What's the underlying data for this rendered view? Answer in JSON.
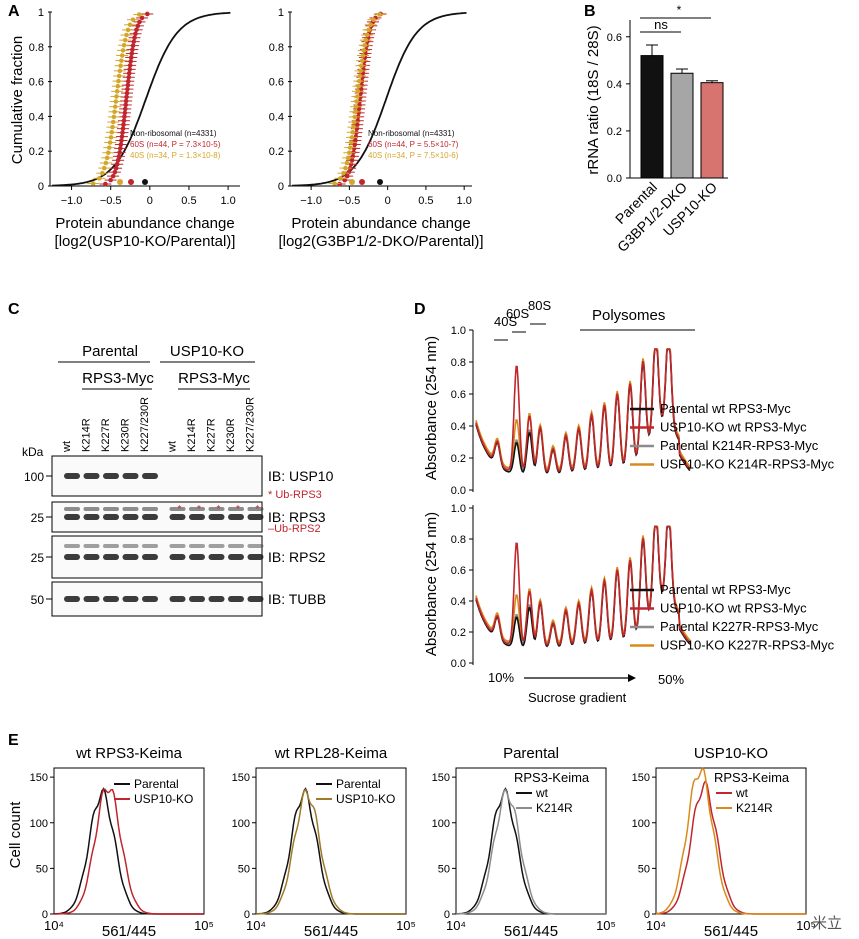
{
  "colors": {
    "black": "#111111",
    "red": "#c0262d",
    "orange": "#d98a1c",
    "gold": "#d4a72c",
    "gray": "#8c8c8c",
    "lightred": "#d8746f",
    "blot_bg": "#f2f2f2"
  },
  "panels": {
    "A": "A",
    "B": "B",
    "C": "C",
    "D": "D",
    "E": "E"
  },
  "panelA": {
    "ylabel": "Cumulative fraction",
    "left": {
      "xlabel1": "Protein abundance change",
      "xlabel2": "[log2(USP10-KO/Parental)]",
      "legend": [
        "Non-ribosomal (n=4331)",
        "60S (n=44, P = 7.3×10-5)",
        "40S (n=34, P = 1.3×10-8)"
      ]
    },
    "right": {
      "xlabel1": "Protein abundance change",
      "xlabel2": "[log2(G3BP1/2-DKO/Parental)]",
      "legend": [
        "Non-ribosomal (n=4331)",
        "60S (n=44, P = 5.5×10-7)",
        "40S (n=34, P = 7.5×10-6)"
      ]
    },
    "yticks": [
      "0",
      "0.2",
      "0.4",
      "0.6",
      "0.8",
      "1"
    ],
    "xticks": [
      "−1.0",
      "−0.5",
      "0",
      "0.5",
      "1.0"
    ]
  },
  "panelB": {
    "ylabel": "rRNA ratio (18S / 28S)",
    "yticks": [
      "0.0",
      "0.2",
      "0.4",
      "0.6"
    ],
    "sig1": "ns",
    "sig2": "*",
    "chart_data": {
      "type": "bar",
      "categories": [
        "Parental",
        "G3BP1/2-DKO",
        "USP10-KO"
      ],
      "values": [
        0.52,
        0.445,
        0.405
      ],
      "errors": [
        0.045,
        0.018,
        0.008
      ],
      "ylim": [
        0,
        0.65
      ],
      "ylabel": "rRNA ratio (18S / 28S)",
      "colors": [
        "#111111",
        "#a6a6a6",
        "#d8746f"
      ]
    }
  },
  "panelC": {
    "group1": "Parental",
    "group2": "USP10-KO",
    "sub1": "RPS3-Myc",
    "sub2": "RPS3-Myc",
    "lanes": [
      "wt",
      "K214R",
      "K227R",
      "K230R",
      "K227/230R",
      "wt",
      "K214R",
      "K227R",
      "K230R",
      "K227/230R"
    ],
    "kda": "kDa",
    "blots": [
      {
        "marker": "100",
        "ib": "IB: USP10"
      },
      {
        "marker": "25",
        "ib": "IB: RPS3",
        "note": "* Ub-RPS3"
      },
      {
        "marker": "25",
        "ib": "IB: RPS2",
        "note": "–Ub-RPS2"
      },
      {
        "marker": "50",
        "ib": "IB: TUBB"
      }
    ]
  },
  "panelD": {
    "ylabel": "Absorbance (254 nm)",
    "yticks": [
      "0.0",
      "0.2",
      "0.4",
      "0.6",
      "0.8",
      "1.0"
    ],
    "labels": [
      "40S",
      "60S",
      "80S",
      "Polysomes"
    ],
    "legend_top": [
      "Parental wt RPS3-Myc",
      "USP10-KO wt RPS3-Myc",
      "Parental K214R-RPS3-Myc",
      "USP10-KO K214R-RPS3-Myc"
    ],
    "legend_bottom": [
      "Parental wt RPS3-Myc",
      "USP10-KO wt RPS3-Myc",
      "Parental K227R-RPS3-Myc",
      "USP10-KO K227R-RPS3-Myc"
    ],
    "x_start": "10%",
    "x_end": "50%",
    "xlabel": "Sucrose gradient"
  },
  "panelE": {
    "ylabel": "Cell count",
    "xlabel": "561/445",
    "yticks": [
      "0",
      "50",
      "100",
      "150"
    ],
    "plots": [
      {
        "title": "wt RPS3-Keima",
        "legend_title": "",
        "legend": [
          "Parental",
          "USP10-KO"
        ]
      },
      {
        "title": "wt RPL28-Keima",
        "legend_title": "",
        "legend": [
          "Parental",
          "USP10-KO"
        ]
      },
      {
        "title": "Parental",
        "legend_title": "RPS3-Keima",
        "legend": [
          "wt",
          "K214R"
        ]
      },
      {
        "title": "USP10-KO",
        "legend_title": "RPS3-Keima",
        "legend": [
          "wt",
          "K214R"
        ]
      }
    ]
  },
  "watermark": "米立"
}
